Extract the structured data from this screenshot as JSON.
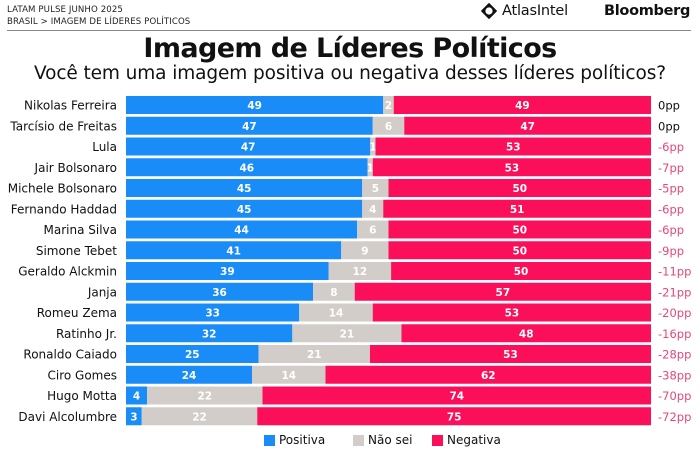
{
  "header": {
    "kicker_line1": "LATAM PULSE JUNHO 2025",
    "kicker_line2": "BRASIL > IMAGEM DE LÍDERES POLÍTICOS",
    "brand_atlas": "AtlasIntel",
    "brand_bloomberg": "Bloomberg",
    "title": "Imagem de Líderes Políticos",
    "subtitle": "Você tem uma imagem positiva ou negativa desses líderes políticos?"
  },
  "colors": {
    "positiva": "#1a8cf7",
    "nao_sei": "#d3cdc9",
    "negativa": "#fb0f5a",
    "net_negative_text": "#e5487a",
    "net_zero_text": "#111111"
  },
  "chart_data": {
    "type": "bar",
    "orientation": "horizontal",
    "stacked": true,
    "title": "Imagem de Líderes Políticos",
    "subtitle": "Você tem uma imagem positiva ou negativa desses líderes políticos?",
    "categories": [
      "Nikolas Ferreira",
      "Tarcísio de Freitas",
      "Lula",
      "Jair Bolsonaro",
      "Michele Bolsonaro",
      "Fernando Haddad",
      "Marina Silva",
      "Simone Tebet",
      "Geraldo Alckmin",
      "Janja",
      "Romeu Zema",
      "Ratinho Jr.",
      "Ronaldo Caiado",
      "Ciro Gomes",
      "Hugo Motta",
      "Davi Alcolumbre"
    ],
    "series": [
      {
        "name": "Positiva",
        "values": [
          49,
          47,
          47,
          46,
          45,
          45,
          44,
          41,
          39,
          36,
          33,
          32,
          25,
          24,
          4,
          3
        ]
      },
      {
        "name": "Não sei",
        "values": [
          2,
          6,
          1,
          1,
          5,
          4,
          6,
          9,
          12,
          8,
          14,
          21,
          21,
          14,
          22,
          22
        ]
      },
      {
        "name": "Negativa",
        "values": [
          49,
          47,
          53,
          53,
          50,
          51,
          50,
          50,
          50,
          57,
          53,
          48,
          53,
          62,
          74,
          75
        ]
      }
    ],
    "net_labels": [
      "0pp",
      "0pp",
      "-6pp",
      "-7pp",
      "-5pp",
      "-6pp",
      "-6pp",
      "-9pp",
      "-11pp",
      "-21pp",
      "-20pp",
      "-16pp",
      "-28pp",
      "-38pp",
      "-70pp",
      "-72pp"
    ],
    "xlim": [
      0,
      100
    ],
    "xlabel": "",
    "ylabel": "",
    "grid": false,
    "legend": {
      "position": "bottom",
      "entries": [
        "Positiva",
        "Não sei",
        "Negativa"
      ]
    }
  }
}
